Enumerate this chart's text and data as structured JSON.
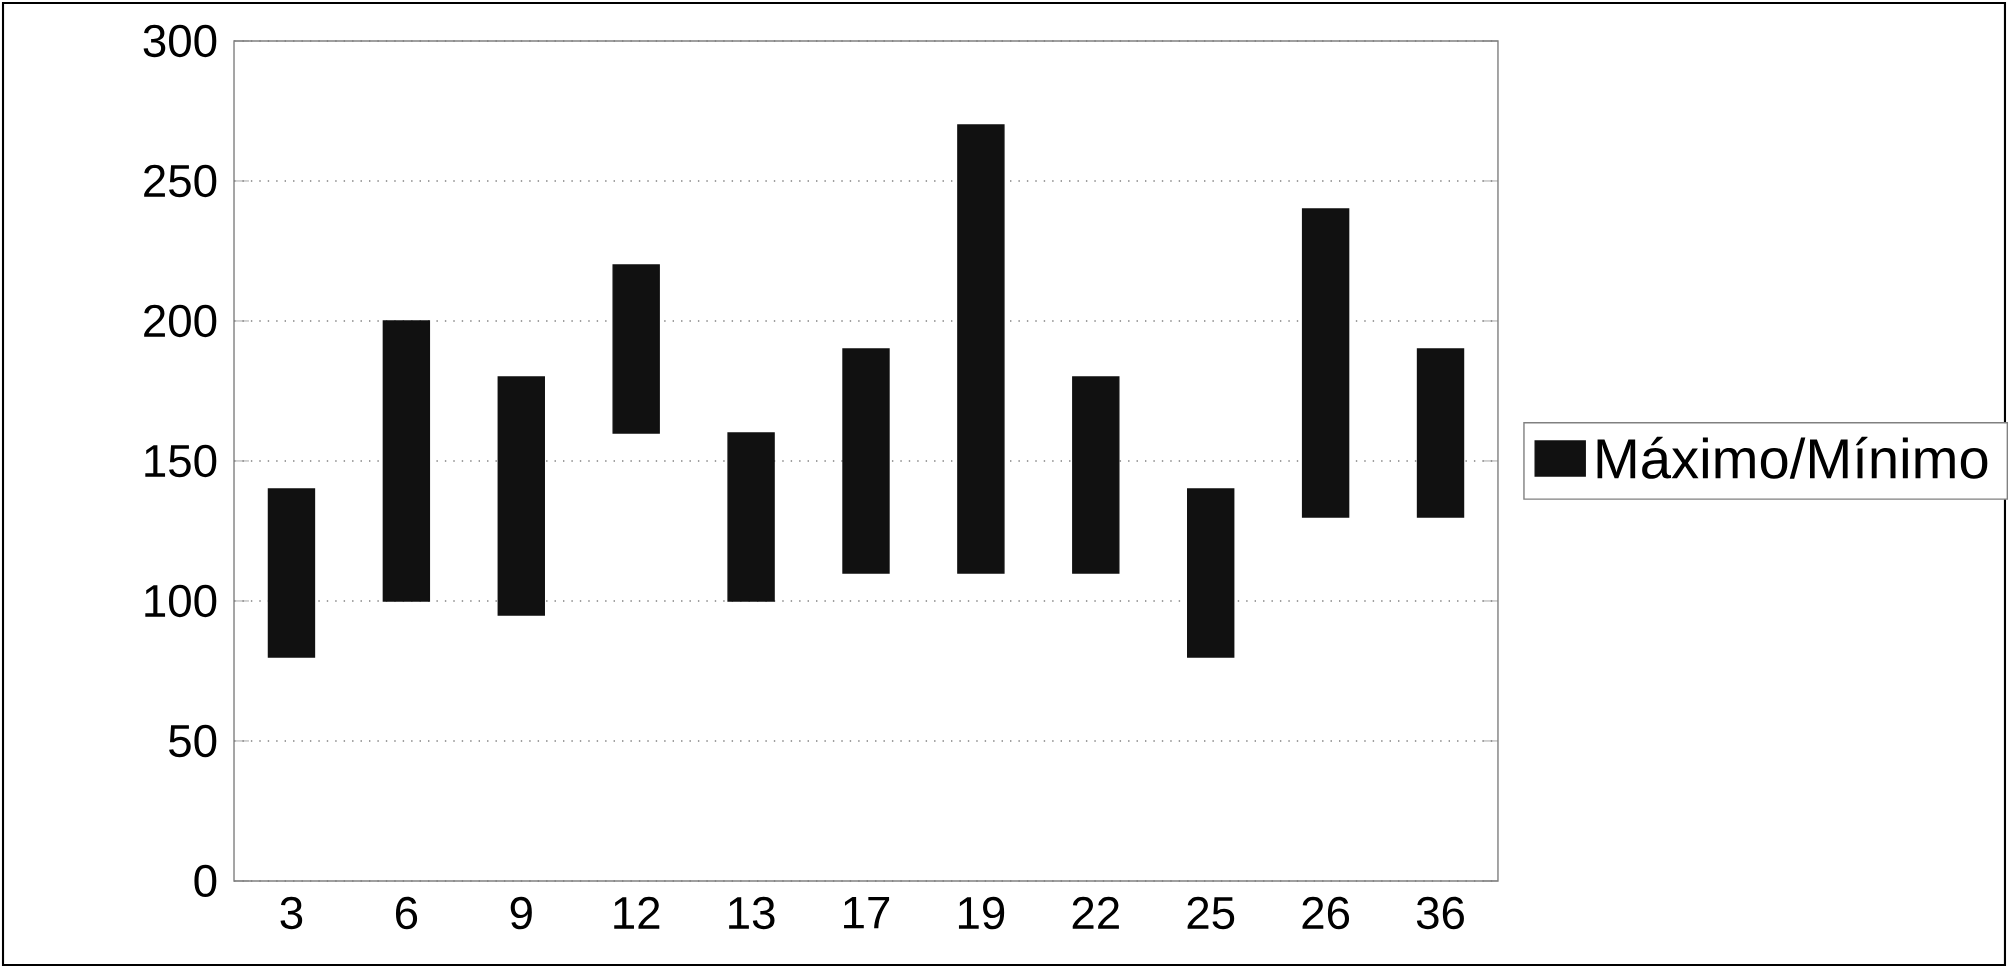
{
  "chart_data": {
    "type": "bar",
    "categories": [
      "3",
      "6",
      "9",
      "12",
      "13",
      "17",
      "19",
      "22",
      "25",
      "26",
      "36"
    ],
    "series": [
      {
        "name": "Máximo/Mínimo",
        "color": "#111111",
        "values": [
          60,
          100,
          85,
          60,
          60,
          80,
          160,
          70,
          60,
          110,
          60
        ],
        "base": [
          80,
          100,
          95,
          160,
          100,
          110,
          110,
          110,
          80,
          130,
          130
        ]
      }
    ],
    "ylim": [
      0,
      300
    ],
    "yticks": [
      0,
      50,
      100,
      150,
      200,
      250,
      300
    ],
    "grid": "y",
    "legend": "right"
  }
}
